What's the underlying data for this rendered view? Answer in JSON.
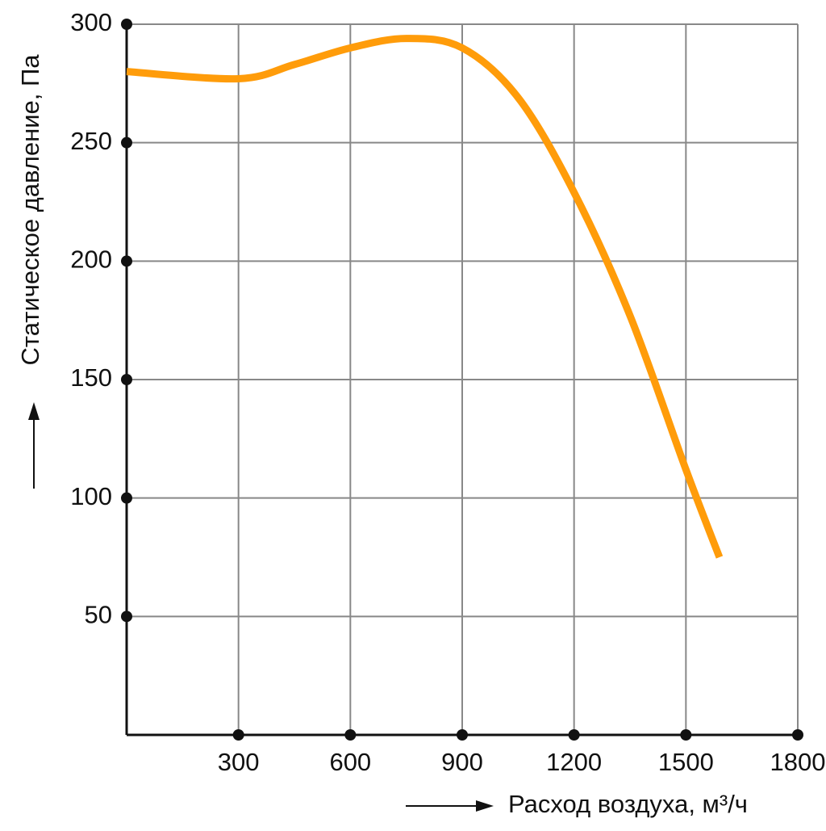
{
  "chart_data": {
    "type": "line",
    "y_label": "Статическое давление, Па",
    "x_label": "Расход воздуха, м³/ч",
    "x": [
      0,
      300,
      450,
      600,
      750,
      900,
      1050,
      1200,
      1350,
      1500,
      1590
    ],
    "series": [
      {
        "color": "#ff9c0a",
        "values": [
          280,
          277,
          283,
          290,
          294,
          290,
          269,
          229,
          177,
          112,
          75
        ]
      }
    ],
    "xlim": [
      0,
      1800
    ],
    "xticks": [
      300,
      600,
      900,
      1200,
      1500,
      1800
    ],
    "ylim": [
      0,
      300
    ],
    "yticks": [
      50,
      100,
      150,
      200,
      250,
      300
    ],
    "grid": true
  }
}
